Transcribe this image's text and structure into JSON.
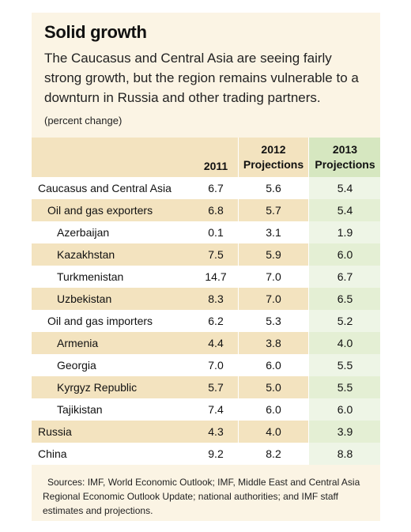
{
  "title": "Solid growth",
  "subtitle": "The Caucasus and Central Asia are seeing fairly strong growth, but the region remains vulnerable to a downturn in Russia and other trading partners.",
  "unit_note": "(percent change)",
  "table": {
    "headers": [
      {
        "line1": "",
        "line2": "2011"
      },
      {
        "line1": "2012",
        "line2": "Projections"
      },
      {
        "line1": "2013",
        "line2": "Projections"
      }
    ],
    "rows": [
      {
        "label": "Caucasus and Central Asia",
        "indent": 0,
        "values": [
          "6.7",
          "5.6",
          "5.4"
        ]
      },
      {
        "label": "Oil and gas exporters",
        "indent": 1,
        "values": [
          "6.8",
          "5.7",
          "5.4"
        ]
      },
      {
        "label": "Azerbaijan",
        "indent": 2,
        "values": [
          "0.1",
          "3.1",
          "1.9"
        ]
      },
      {
        "label": "Kazakhstan",
        "indent": 2,
        "values": [
          "7.5",
          "5.9",
          "6.0"
        ]
      },
      {
        "label": "Turkmenistan",
        "indent": 2,
        "values": [
          "14.7",
          "7.0",
          "6.7"
        ]
      },
      {
        "label": "Uzbekistan",
        "indent": 2,
        "values": [
          "8.3",
          "7.0",
          "6.5"
        ]
      },
      {
        "label": "Oil and gas importers",
        "indent": 1,
        "values": [
          "6.2",
          "5.3",
          "5.2"
        ]
      },
      {
        "label": "Armenia",
        "indent": 2,
        "values": [
          "4.4",
          "3.8",
          "4.0"
        ]
      },
      {
        "label": "Georgia",
        "indent": 2,
        "values": [
          "7.0",
          "6.0",
          "5.5"
        ]
      },
      {
        "label": "Kyrgyz Republic",
        "indent": 2,
        "values": [
          "5.7",
          "5.0",
          "5.5"
        ]
      },
      {
        "label": "Tajikistan",
        "indent": 2,
        "values": [
          "7.4",
          "6.0",
          "6.0"
        ]
      },
      {
        "label": "Russia",
        "indent": 0,
        "values": [
          "4.3",
          "4.0",
          "3.9"
        ]
      },
      {
        "label": "China",
        "indent": 0,
        "values": [
          "9.2",
          "8.2",
          "8.8"
        ]
      }
    ]
  },
  "sources": "Sources: IMF, World Economic Outlook; IMF, Middle East and Central Asia Regional Economic Outlook Update; national authorities; and IMF staff estimates and projections."
}
